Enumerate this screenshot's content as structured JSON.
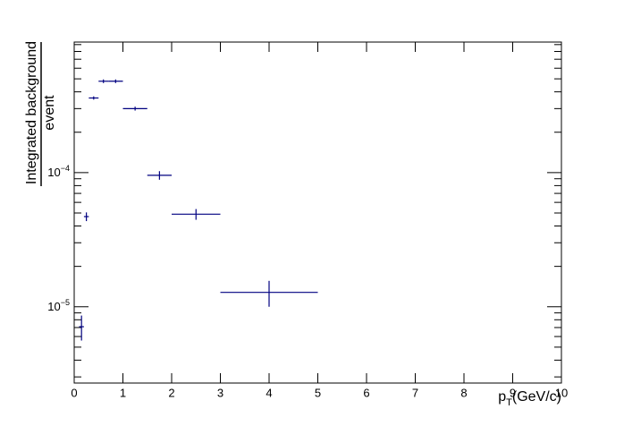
{
  "chart_data": {
    "type": "errorbar",
    "y_label_numerator": "Integrated background",
    "y_label_denominator": "event",
    "x_label": "pT(GeV/c)",
    "log_y": true,
    "xlim": [
      0,
      10
    ],
    "xticks": [
      0,
      1,
      2,
      3,
      4,
      5,
      6,
      7,
      8,
      9,
      10
    ],
    "ylim": [
      2.7e-06,
      0.00094
    ],
    "yticks": [
      {
        "value": 1e-05,
        "label": "10−5"
      },
      {
        "value": 0.0001,
        "label": "10−4"
      }
    ],
    "yminorticks": [
      3e-06,
      4e-06,
      5e-06,
      6e-06,
      7e-06,
      8e-06,
      9e-06,
      2e-05,
      3e-05,
      4e-05,
      5e-05,
      6e-05,
      7e-05,
      8e-05,
      9e-05,
      0.0002,
      0.0003,
      0.0004,
      0.0005,
      0.0006,
      0.0007,
      0.0008,
      0.0009
    ],
    "series": [
      {
        "color": "#000080",
        "x": [
          0.15,
          0.25,
          0.4,
          0.6,
          0.85,
          1.25,
          1.75,
          2.5,
          4
        ],
        "xerr": [
          0.05,
          0.05,
          0.1,
          0.1,
          0.15,
          0.25,
          0.25,
          0.5,
          1
        ],
        "values": [
          7.1e-06,
          4.7e-05,
          0.00036,
          0.00048,
          0.00048,
          0.0003,
          9.55e-05,
          4.9e-05,
          1.28e-05
        ],
        "yerr": [
          1.5e-06,
          3.5e-06,
          1e-05,
          1.5e-05,
          1.5e-05,
          1e-05,
          7e-06,
          4.5e-06,
          2.8e-06
        ]
      }
    ]
  }
}
